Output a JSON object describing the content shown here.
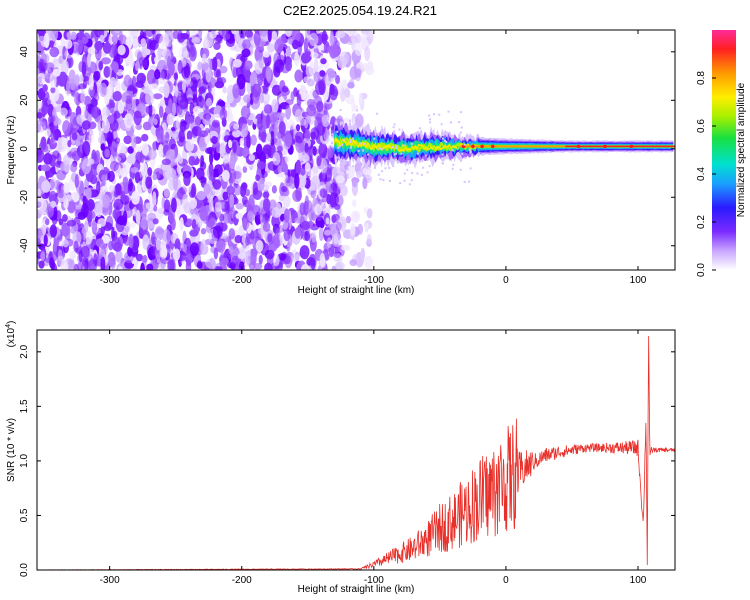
{
  "title": "C2E2.2025.054.19.24.R21",
  "chart_data": [
    {
      "type": "heatmap",
      "xlabel": "Height of straight line (km)",
      "ylabel": "Frequency (Hz)",
      "xlim": [
        -355,
        128
      ],
      "ylim": [
        -50,
        49
      ],
      "x_ticks": [
        -300,
        -200,
        -100,
        0,
        100
      ],
      "y_ticks": [
        -40,
        -20,
        0,
        20,
        40
      ],
      "x_tick_labels": [
        "-300",
        "-200",
        "-100",
        "0",
        "100"
      ],
      "y_tick_labels": [
        "-40",
        "-20",
        "0",
        "20",
        "40"
      ],
      "noise_region_x": [
        -355,
        -118
      ],
      "signal_track": [
        {
          "x": -130,
          "f": 3,
          "width": 10
        },
        {
          "x": -100,
          "f": 1,
          "width": 9
        },
        {
          "x": -75,
          "f": 0,
          "width": 8
        },
        {
          "x": -50,
          "f": 1,
          "width": 7
        },
        {
          "x": -30,
          "f": 1,
          "width": 5
        },
        {
          "x": 0,
          "f": 1,
          "width": 4
        },
        {
          "x": 50,
          "f": 1,
          "width": 3
        },
        {
          "x": 100,
          "f": 1,
          "width": 3
        },
        {
          "x": 128,
          "f": 1,
          "width": 3
        }
      ],
      "colorbar": {
        "label": "Normalized spectral amplitude",
        "range": [
          0,
          1
        ],
        "ticks": [
          0.0,
          0.2,
          0.4,
          0.6,
          0.8
        ],
        "tick_labels": [
          "0.0",
          "0.2",
          "0.4",
          "0.6",
          "0.8"
        ]
      }
    },
    {
      "type": "line",
      "xlabel": "Height of straight line (km)",
      "ylabel": "SNR (10 * v/v)",
      "y_multiplier": "(x10",
      "y_multiplier_exp": "4",
      "y_multiplier_close": ")",
      "xlim": [
        -355,
        128
      ],
      "ylim": [
        0,
        2.2
      ],
      "x_ticks": [
        -300,
        -200,
        -100,
        0,
        100
      ],
      "y_ticks": [
        0.0,
        0.5,
        1.0,
        1.5,
        2.0
      ],
      "x_tick_labels": [
        "-300",
        "-200",
        "-100",
        "0",
        "100"
      ],
      "y_tick_labels": [
        "0.0",
        "0.5",
        "1.0",
        "1.5",
        "2.0"
      ],
      "series": [
        {
          "name": "SNR",
          "color": "#e8302a",
          "x": [
            -355,
            -110,
            -100,
            -90,
            -80,
            -70,
            -60,
            -50,
            -40,
            -30,
            -20,
            -10,
            0,
            10,
            20,
            30,
            40,
            50,
            60,
            70,
            80,
            90,
            100,
            104,
            106,
            107,
            108,
            109,
            110,
            115,
            128
          ],
          "y": [
            0.0,
            0.01,
            0.05,
            0.1,
            0.15,
            0.2,
            0.28,
            0.38,
            0.45,
            0.55,
            0.65,
            0.72,
            0.82,
            0.9,
            0.98,
            1.05,
            1.08,
            1.1,
            1.12,
            1.12,
            1.12,
            1.12,
            1.12,
            0.4,
            1.4,
            0.05,
            2.2,
            1.0,
            1.1,
            1.1,
            1.1
          ],
          "noise_amplitude": [
            0.002,
            0.004,
            0.06,
            0.1,
            0.13,
            0.16,
            0.2,
            0.22,
            0.24,
            0.26,
            0.24,
            0.2,
            0.15,
            0.12,
            0.08,
            0.07,
            0.06,
            0.05,
            0.04,
            0.04,
            0.05,
            0.06,
            0.08,
            0.05,
            0.05,
            0.02,
            0.02,
            0.05,
            0.03,
            0.02,
            0.02
          ]
        }
      ]
    }
  ]
}
